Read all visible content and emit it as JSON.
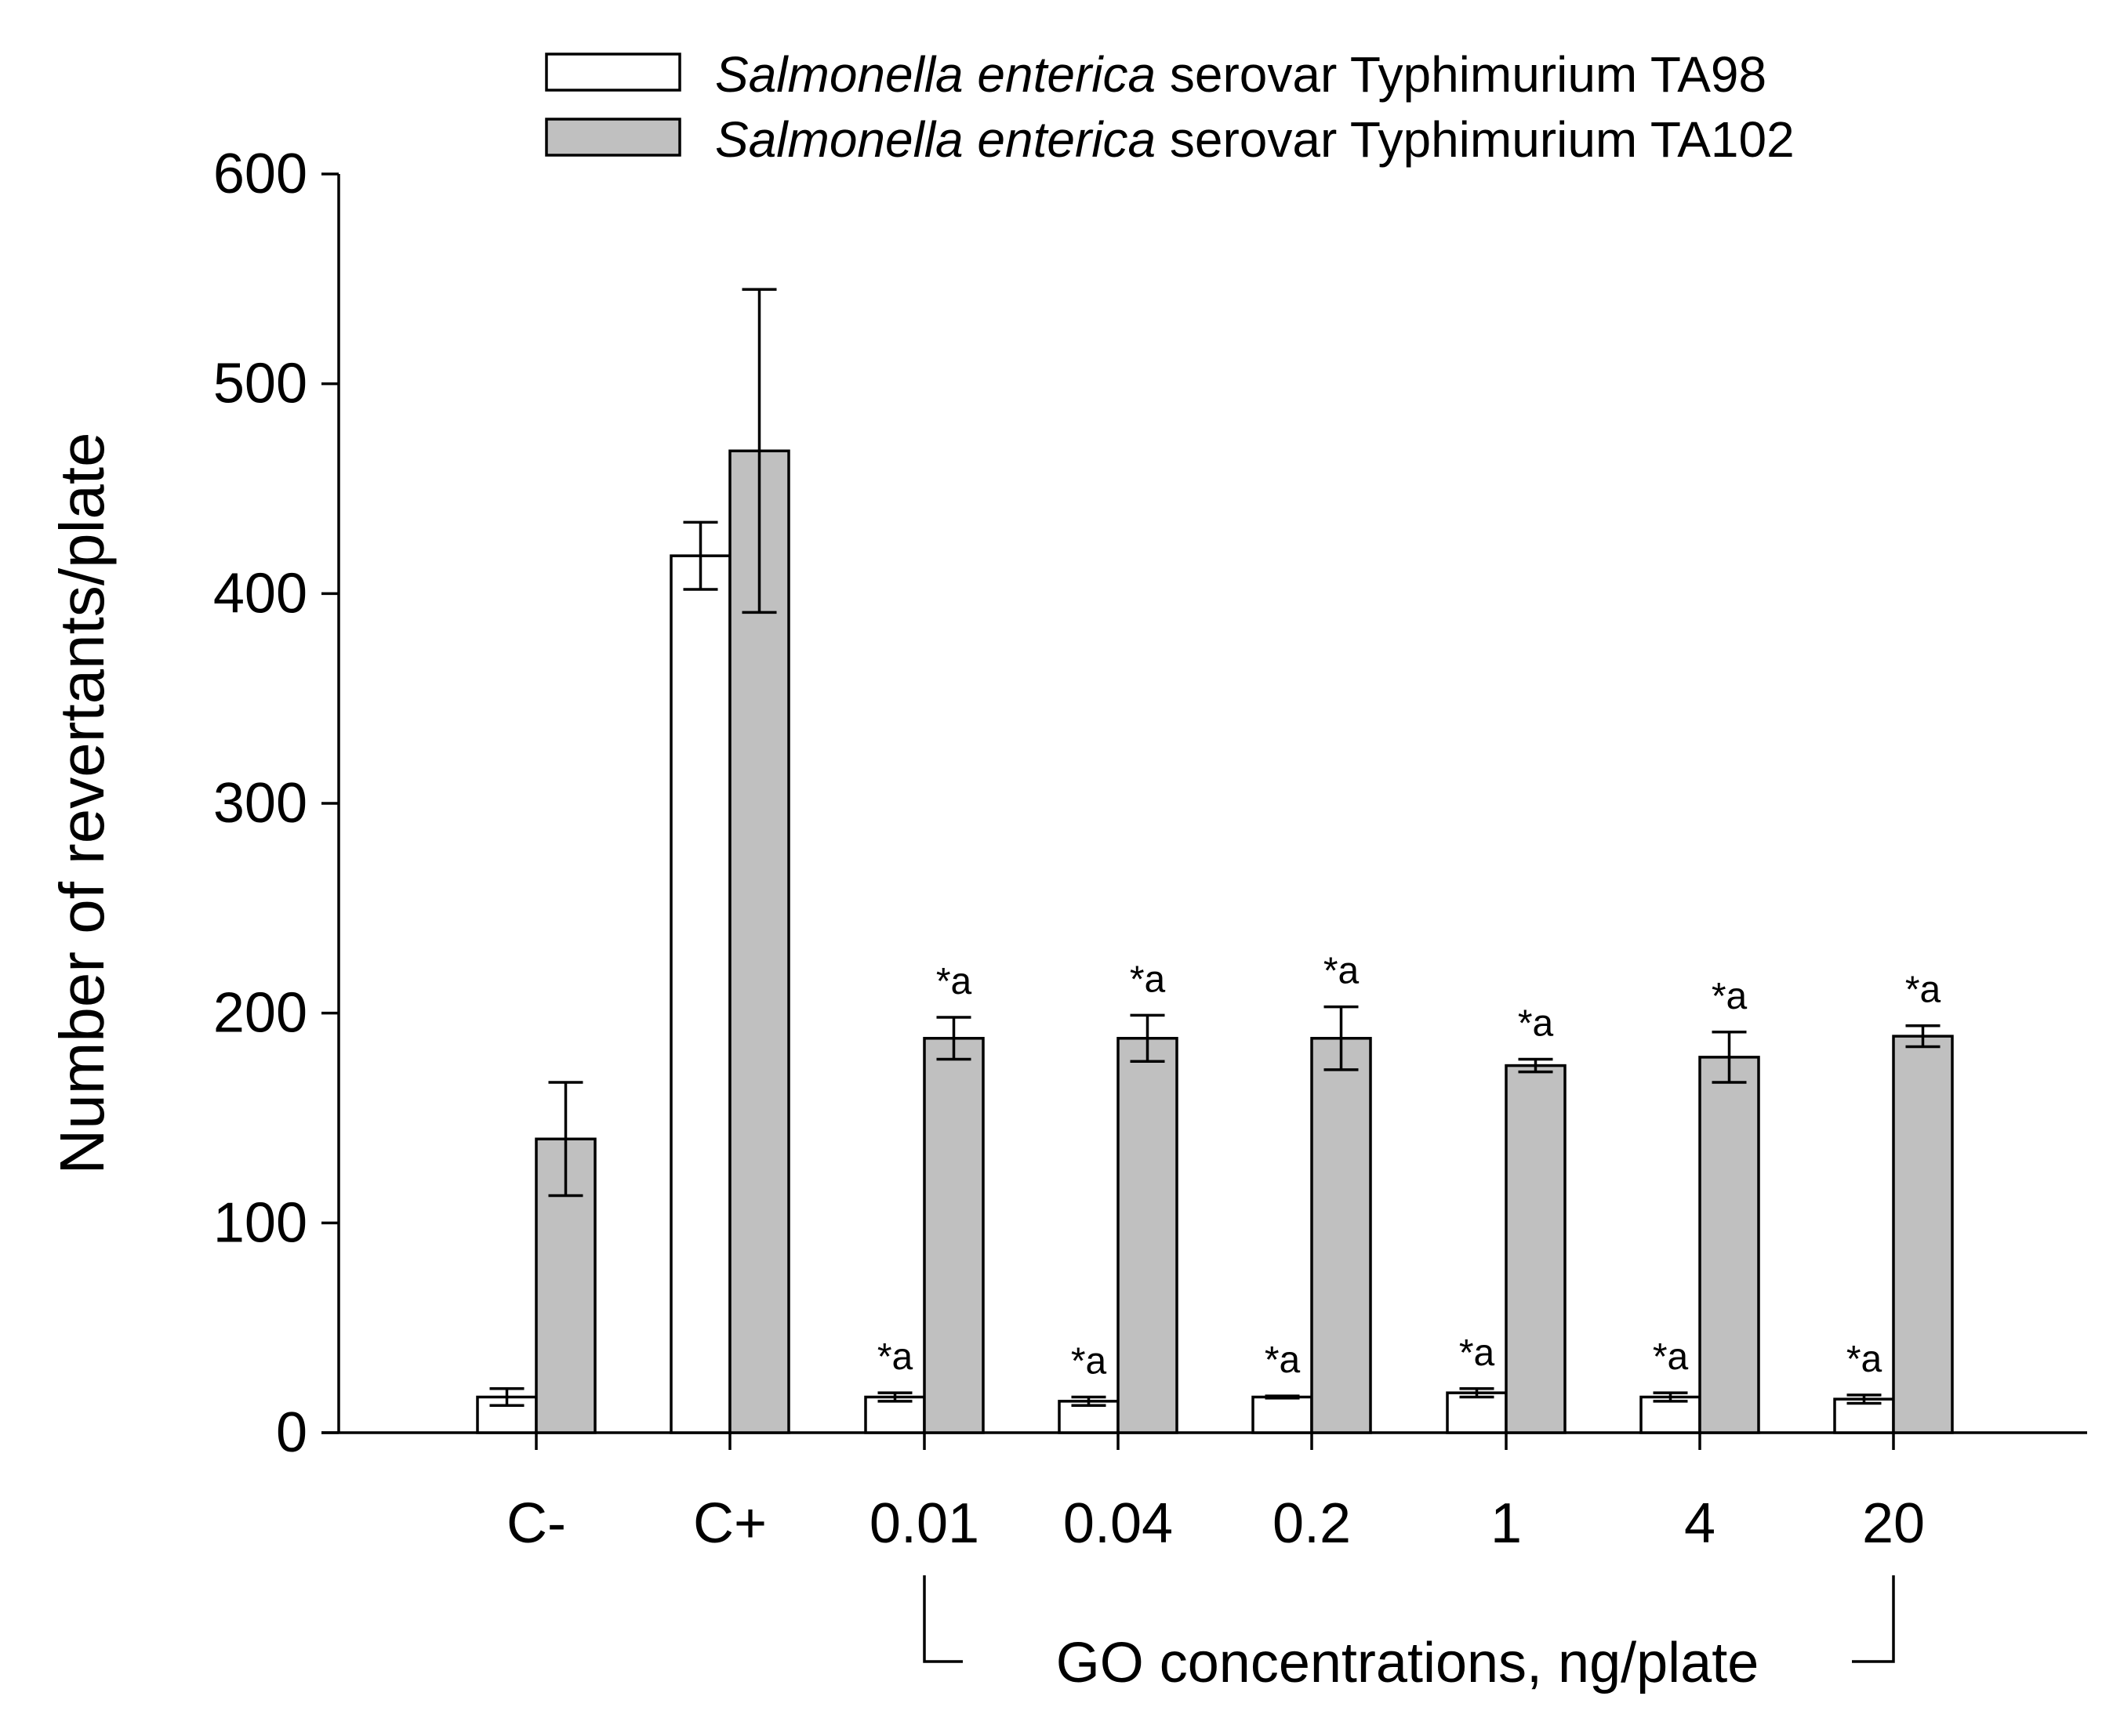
{
  "chart_data": {
    "type": "bar",
    "title": "",
    "xlabel": "",
    "ylabel": "Number of revertants/plate",
    "ylim": [
      0,
      600
    ],
    "yticks": [
      0,
      100,
      200,
      300,
      400,
      500,
      600
    ],
    "categories": [
      "C-",
      "C+",
      "0.01",
      "0.04",
      "0.2",
      "1",
      "4",
      "20"
    ],
    "bracket_label": "GO concentrations, ng/plate",
    "bracket_span": [
      "0.01",
      "20"
    ],
    "legend_position": "top",
    "series": [
      {
        "name": "Salmonella enterica serovar Typhimurium TA98",
        "name_italic": "Salmonella enterica",
        "name_rest": " serovar Typhimurium TA98",
        "fill": "#ffffff",
        "values": [
          17,
          418,
          17,
          15,
          17,
          19,
          17,
          16
        ],
        "errors": [
          4,
          16,
          2,
          2,
          0.5,
          2,
          2,
          2
        ],
        "annotations": [
          "",
          "",
          "*a",
          "*a",
          "*a",
          "*a",
          "*a",
          "*a"
        ]
      },
      {
        "name": "Salmonella enterica serovar Typhimurium TA102",
        "name_italic": "Salmonella enterica",
        "name_rest": " serovar Typhimurium TA102",
        "fill": "#c0c0c0",
        "values": [
          140,
          468,
          188,
          188,
          188,
          175,
          179,
          189
        ],
        "errors": [
          27,
          77,
          10,
          11,
          15,
          3,
          12,
          5
        ],
        "annotations": [
          "",
          "",
          "*a",
          "*a",
          "*a",
          "*a",
          "*a",
          "*a"
        ]
      }
    ]
  }
}
